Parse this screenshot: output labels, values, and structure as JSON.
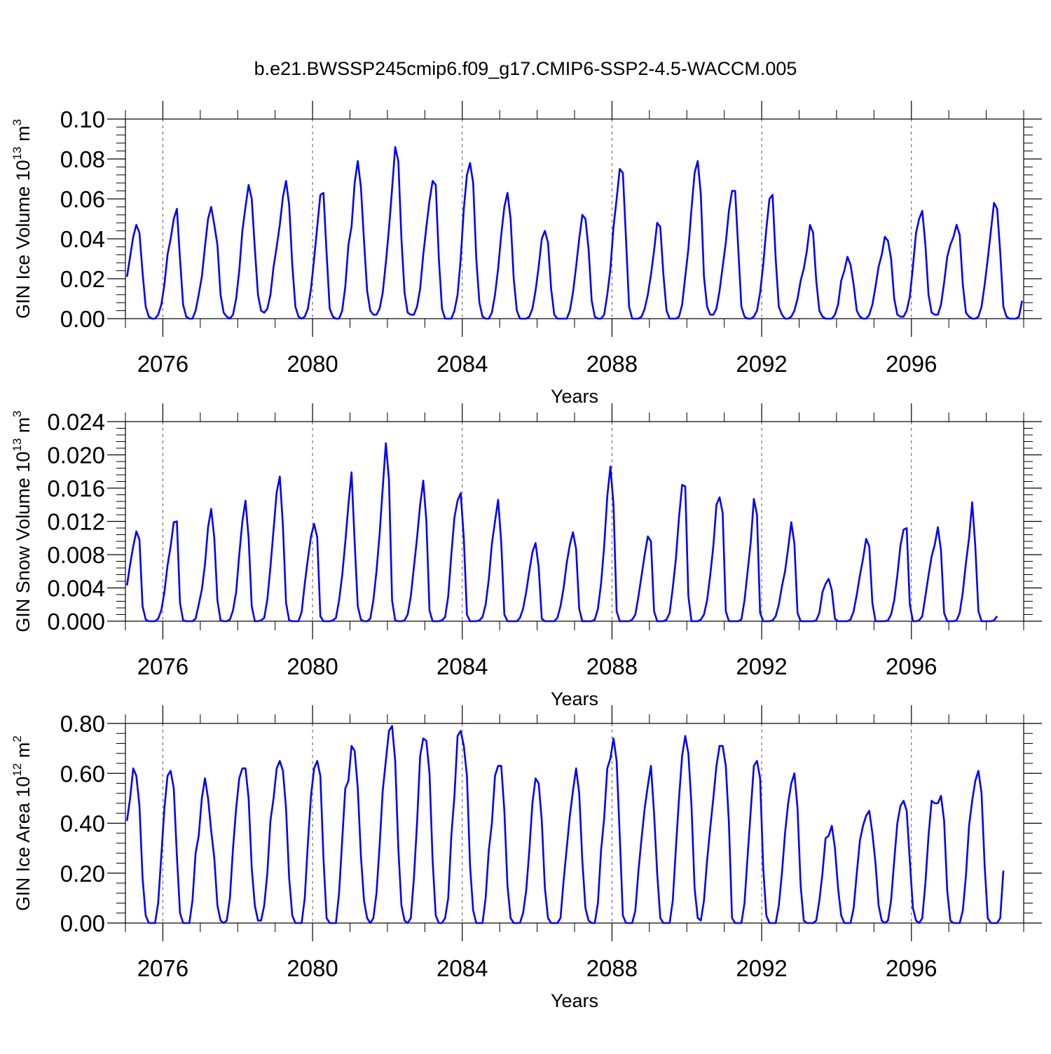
{
  "figure": {
    "title": "b.e21.BWSSP245cmip6.f09_g17.CMIP6-SSP2-4.5-WACCM.005"
  },
  "style": {
    "line_color": "#0000ff",
    "axis_color": "#000000"
  },
  "chart_data": [
    {
      "type": "line",
      "ylabel_main": "GIN Ice Volume 10",
      "ylabel_exp": "13",
      "ylabel_unit": " m",
      "ylabel_unit_exp": "3",
      "xlabel": "Years",
      "xlim": [
        2075.0,
        2099.0
      ],
      "ylim": [
        0.0,
        0.1
      ],
      "yticks": [
        0.0,
        0.02,
        0.04,
        0.06,
        0.08,
        0.1
      ],
      "ytick_labels": [
        "0.00",
        "0.02",
        "0.04",
        "0.06",
        "0.08",
        "0.10"
      ],
      "xticks": [
        2076,
        2080,
        2084,
        2088,
        2092,
        2096
      ],
      "xtick_labels": [
        "2076",
        "2080",
        "2084",
        "2088",
        "2092",
        "2096"
      ],
      "grid": "dashed vertical at x ticks",
      "start": 2075.0417,
      "step": 0.08333,
      "series": [
        {
          "values": [
            0.021,
            0.031,
            0.041,
            0.047,
            0.043,
            0.023,
            0.006,
            0.001,
            0.0,
            0.0,
            0.002,
            0.007,
            0.017,
            0.032,
            0.04,
            0.05,
            0.055,
            0.03,
            0.007,
            0.001,
            0.0,
            0.0,
            0.004,
            0.012,
            0.021,
            0.036,
            0.05,
            0.056,
            0.047,
            0.037,
            0.012,
            0.003,
            0.001,
            0.0,
            0.002,
            0.01,
            0.024,
            0.044,
            0.056,
            0.067,
            0.06,
            0.035,
            0.012,
            0.004,
            0.003,
            0.005,
            0.012,
            0.026,
            0.036,
            0.047,
            0.061,
            0.069,
            0.057,
            0.027,
            0.006,
            0.001,
            0.0,
            0.001,
            0.005,
            0.015,
            0.03,
            0.046,
            0.062,
            0.063,
            0.033,
            0.005,
            0.001,
            0.0,
            0.0,
            0.004,
            0.016,
            0.037,
            0.046,
            0.068,
            0.079,
            0.066,
            0.039,
            0.014,
            0.004,
            0.002,
            0.002,
            0.005,
            0.013,
            0.028,
            0.045,
            0.065,
            0.086,
            0.079,
            0.04,
            0.013,
            0.003,
            0.002,
            0.002,
            0.006,
            0.015,
            0.032,
            0.046,
            0.059,
            0.069,
            0.067,
            0.03,
            0.005,
            0.0,
            0.0,
            0.0,
            0.004,
            0.012,
            0.03,
            0.055,
            0.072,
            0.078,
            0.068,
            0.03,
            0.008,
            0.001,
            0.0,
            0.0,
            0.003,
            0.012,
            0.025,
            0.042,
            0.056,
            0.063,
            0.05,
            0.02,
            0.004,
            0.0,
            0.0,
            0.0,
            0.001,
            0.005,
            0.014,
            0.026,
            0.04,
            0.044,
            0.038,
            0.015,
            0.002,
            0.0,
            0.0,
            0.0,
            0.0,
            0.004,
            0.013,
            0.026,
            0.04,
            0.052,
            0.05,
            0.035,
            0.009,
            0.001,
            0.0,
            0.0,
            0.002,
            0.012,
            0.025,
            0.046,
            0.06,
            0.075,
            0.073,
            0.04,
            0.006,
            0.0,
            0.0,
            0.0,
            0.001,
            0.005,
            0.012,
            0.022,
            0.034,
            0.048,
            0.046,
            0.022,
            0.004,
            0.0,
            0.0,
            0.0,
            0.001,
            0.007,
            0.021,
            0.035,
            0.055,
            0.073,
            0.079,
            0.062,
            0.021,
            0.006,
            0.002,
            0.002,
            0.005,
            0.014,
            0.026,
            0.038,
            0.054,
            0.064,
            0.064,
            0.035,
            0.006,
            0.001,
            0.0,
            0.0,
            0.001,
            0.004,
            0.013,
            0.027,
            0.045,
            0.06,
            0.062,
            0.03,
            0.006,
            0.002,
            0.0,
            0.0,
            0.001,
            0.004,
            0.01,
            0.019,
            0.025,
            0.034,
            0.047,
            0.043,
            0.019,
            0.004,
            0.001,
            0.0,
            0.0,
            0.0,
            0.002,
            0.007,
            0.019,
            0.024,
            0.031,
            0.027,
            0.017,
            0.004,
            0.001,
            0.0,
            0.0,
            0.002,
            0.007,
            0.016,
            0.026,
            0.032,
            0.041,
            0.039,
            0.03,
            0.01,
            0.002,
            0.001,
            0.001,
            0.004,
            0.011,
            0.026,
            0.043,
            0.05,
            0.054,
            0.037,
            0.012,
            0.003,
            0.002,
            0.002,
            0.007,
            0.018,
            0.031,
            0.037,
            0.041,
            0.047,
            0.042,
            0.017,
            0.003,
            0.001,
            0.0,
            0.0,
            0.001,
            0.006,
            0.017,
            0.03,
            0.044,
            0.058,
            0.055,
            0.033,
            0.006,
            0.001,
            0.0,
            0.0,
            0.0,
            0.001,
            0.009
          ]
        }
      ]
    },
    {
      "type": "line",
      "ylabel_main": "GIN Snow Volume 10",
      "ylabel_exp": "13",
      "ylabel_unit": " m",
      "ylabel_unit_exp": "3",
      "xlabel": "Years",
      "xlim": [
        2075.0,
        2099.0
      ],
      "ylim": [
        0.0,
        0.024
      ],
      "yticks": [
        0.0,
        0.004,
        0.008,
        0.012,
        0.016,
        0.02,
        0.024
      ],
      "ytick_labels": [
        "0.000",
        "0.004",
        "0.008",
        "0.012",
        "0.016",
        "0.020",
        "0.024"
      ],
      "xticks": [
        2076,
        2080,
        2084,
        2088,
        2092,
        2096
      ],
      "xtick_labels": [
        "2076",
        "2080",
        "2084",
        "2088",
        "2092",
        "2096"
      ],
      "grid": "dashed vertical at x ticks",
      "start": 2075.0417,
      "step": 0.08333,
      "series": [
        {
          "values": [
            0.0043,
            0.0068,
            0.009,
            0.0108,
            0.0098,
            0.0018,
            0.0002,
            0.0,
            0.0,
            0.0,
            0.0003,
            0.0013,
            0.0035,
            0.0067,
            0.009,
            0.0119,
            0.012,
            0.0022,
            0.0001,
            0.0,
            0.0,
            0.0,
            0.0003,
            0.002,
            0.0038,
            0.0068,
            0.0113,
            0.0135,
            0.01,
            0.0025,
            0.0001,
            0.0,
            0.0,
            0.0002,
            0.0013,
            0.0035,
            0.008,
            0.012,
            0.0145,
            0.01,
            0.0018,
            0.0,
            0.0,
            0.0001,
            0.0004,
            0.0026,
            0.0065,
            0.011,
            0.0155,
            0.0174,
            0.0115,
            0.0022,
            0.0001,
            0.0,
            0.0,
            0.0,
            0.0011,
            0.0045,
            0.0075,
            0.0102,
            0.0117,
            0.0101,
            0.0006,
            0.0,
            0.0,
            0.0,
            0.0001,
            0.0004,
            0.0025,
            0.0055,
            0.0095,
            0.014,
            0.0179,
            0.0095,
            0.0018,
            0.0002,
            0.0,
            0.0,
            0.0003,
            0.0025,
            0.006,
            0.0105,
            0.016,
            0.0214,
            0.017,
            0.0025,
            0.0001,
            0.0,
            0.0,
            0.0001,
            0.0008,
            0.003,
            0.0065,
            0.01,
            0.014,
            0.0169,
            0.012,
            0.0013,
            0.0,
            0.0,
            0.0,
            0.0001,
            0.0005,
            0.003,
            0.008,
            0.0125,
            0.0145,
            0.0154,
            0.01,
            0.0008,
            0.0,
            0.0,
            0.0,
            0.0001,
            0.0005,
            0.002,
            0.005,
            0.0093,
            0.012,
            0.0146,
            0.0095,
            0.0008,
            0.0,
            0.0,
            0.0,
            0.0,
            0.0004,
            0.0015,
            0.0035,
            0.006,
            0.0083,
            0.0094,
            0.0065,
            0.0003,
            0.0,
            0.0,
            0.0,
            0.0,
            0.0004,
            0.0018,
            0.004,
            0.007,
            0.0092,
            0.0107,
            0.0087,
            0.0015,
            0.0,
            0.0,
            0.0,
            0.0,
            0.0002,
            0.0015,
            0.0045,
            0.009,
            0.015,
            0.0186,
            0.014,
            0.0012,
            0.0,
            0.0,
            0.0,
            0.0,
            0.0002,
            0.0008,
            0.003,
            0.0055,
            0.008,
            0.0102,
            0.0096,
            0.0012,
            0.0,
            0.0,
            0.0,
            0.0002,
            0.001,
            0.004,
            0.0075,
            0.0125,
            0.0164,
            0.0162,
            0.003,
            0.0,
            0.0,
            0.0,
            0.0002,
            0.0008,
            0.0025,
            0.0055,
            0.009,
            0.014,
            0.0149,
            0.013,
            0.0012,
            0.0,
            0.0,
            0.0,
            0.0,
            0.0002,
            0.0025,
            0.006,
            0.0095,
            0.0147,
            0.0128,
            0.001,
            0.0,
            0.0,
            0.0,
            0.0001,
            0.0006,
            0.002,
            0.0042,
            0.006,
            0.0088,
            0.0119,
            0.0093,
            0.001,
            0.0,
            0.0,
            0.0,
            0.0,
            0.0,
            0.0001,
            0.001,
            0.0035,
            0.0045,
            0.0051,
            0.0037,
            0.0003,
            0.0,
            0.0,
            0.0,
            0.0,
            0.0002,
            0.0012,
            0.0032,
            0.0055,
            0.0075,
            0.0099,
            0.009,
            0.0022,
            0.0,
            0.0,
            0.0,
            0.0,
            0.0001,
            0.0008,
            0.0025,
            0.0055,
            0.0091,
            0.011,
            0.0112,
            0.002,
            0.0,
            0.0,
            0.0001,
            0.0006,
            0.003,
            0.0055,
            0.0078,
            0.0092,
            0.0113,
            0.0085,
            0.001,
            0.0,
            0.0,
            0.0,
            0.0001,
            0.001,
            0.0035,
            0.007,
            0.01,
            0.0143,
            0.009,
            0.0012,
            0.0,
            0.0,
            0.0,
            0.0,
            0.0001,
            0.0006
          ]
        }
      ]
    },
    {
      "type": "line",
      "ylabel_main": "GIN Ice Area 10",
      "ylabel_exp": "12",
      "ylabel_unit": " m",
      "ylabel_unit_exp": "2",
      "xlabel": "Years",
      "xlim": [
        2075.0,
        2099.0
      ],
      "ylim": [
        0.0,
        0.8
      ],
      "yticks": [
        0.0,
        0.2,
        0.4,
        0.6,
        0.8
      ],
      "ytick_labels": [
        "0.00",
        "0.20",
        "0.40",
        "0.60",
        "0.80"
      ],
      "xticks": [
        2076,
        2080,
        2084,
        2088,
        2092,
        2096
      ],
      "xtick_labels": [
        "2076",
        "2080",
        "2084",
        "2088",
        "2092",
        "2096"
      ],
      "grid": "dashed vertical at x ticks",
      "start": 2075.0417,
      "step": 0.08333,
      "series": [
        {
          "values": [
            0.41,
            0.5,
            0.62,
            0.59,
            0.47,
            0.18,
            0.03,
            0.0,
            0.0,
            0.0,
            0.08,
            0.27,
            0.46,
            0.59,
            0.61,
            0.54,
            0.27,
            0.04,
            0.0,
            0.0,
            0.0,
            0.09,
            0.28,
            0.35,
            0.5,
            0.58,
            0.5,
            0.37,
            0.26,
            0.07,
            0.01,
            0.0,
            0.01,
            0.1,
            0.3,
            0.46,
            0.58,
            0.62,
            0.62,
            0.5,
            0.22,
            0.07,
            0.01,
            0.01,
            0.07,
            0.2,
            0.41,
            0.5,
            0.62,
            0.65,
            0.61,
            0.46,
            0.18,
            0.03,
            0.0,
            0.0,
            0.0,
            0.1,
            0.32,
            0.51,
            0.62,
            0.65,
            0.59,
            0.26,
            0.02,
            0.0,
            0.0,
            0.0,
            0.12,
            0.33,
            0.54,
            0.57,
            0.71,
            0.69,
            0.54,
            0.27,
            0.09,
            0.02,
            0.0,
            0.02,
            0.12,
            0.31,
            0.53,
            0.65,
            0.77,
            0.79,
            0.65,
            0.3,
            0.07,
            0.01,
            0.0,
            0.02,
            0.18,
            0.4,
            0.67,
            0.74,
            0.73,
            0.6,
            0.25,
            0.03,
            0.0,
            0.0,
            0.02,
            0.1,
            0.35,
            0.51,
            0.75,
            0.77,
            0.71,
            0.59,
            0.23,
            0.05,
            0.0,
            0.0,
            0.0,
            0.1,
            0.29,
            0.4,
            0.59,
            0.63,
            0.63,
            0.45,
            0.15,
            0.02,
            0.0,
            0.0,
            0.0,
            0.04,
            0.13,
            0.29,
            0.48,
            0.58,
            0.56,
            0.41,
            0.14,
            0.02,
            0.0,
            0.0,
            0.0,
            0.02,
            0.17,
            0.3,
            0.43,
            0.53,
            0.62,
            0.52,
            0.25,
            0.06,
            0.01,
            0.0,
            0.0,
            0.08,
            0.29,
            0.42,
            0.62,
            0.66,
            0.74,
            0.65,
            0.35,
            0.03,
            0.0,
            0.0,
            0.0,
            0.05,
            0.21,
            0.34,
            0.46,
            0.55,
            0.63,
            0.44,
            0.2,
            0.02,
            0.0,
            0.0,
            0.0,
            0.09,
            0.3,
            0.5,
            0.67,
            0.75,
            0.68,
            0.47,
            0.14,
            0.02,
            0.01,
            0.09,
            0.25,
            0.38,
            0.5,
            0.63,
            0.71,
            0.71,
            0.63,
            0.4,
            0.02,
            0.0,
            0.0,
            0.0,
            0.08,
            0.27,
            0.45,
            0.63,
            0.65,
            0.58,
            0.22,
            0.03,
            0.0,
            0.0,
            0.0,
            0.07,
            0.2,
            0.36,
            0.48,
            0.56,
            0.6,
            0.46,
            0.15,
            0.01,
            0.0,
            0.0,
            0.0,
            0.01,
            0.09,
            0.2,
            0.34,
            0.35,
            0.39,
            0.3,
            0.14,
            0.03,
            0.0,
            0.0,
            0.0,
            0.06,
            0.2,
            0.33,
            0.39,
            0.43,
            0.45,
            0.36,
            0.24,
            0.07,
            0.01,
            0.0,
            0.01,
            0.09,
            0.25,
            0.4,
            0.47,
            0.49,
            0.45,
            0.25,
            0.06,
            0.01,
            0.0,
            0.02,
            0.16,
            0.35,
            0.49,
            0.48,
            0.48,
            0.51,
            0.41,
            0.13,
            0.01,
            0.0,
            0.0,
            0.0,
            0.05,
            0.19,
            0.39,
            0.49,
            0.57,
            0.61,
            0.52,
            0.23,
            0.02,
            0.0,
            0.0,
            0.0,
            0.02,
            0.21
          ]
        }
      ]
    }
  ]
}
